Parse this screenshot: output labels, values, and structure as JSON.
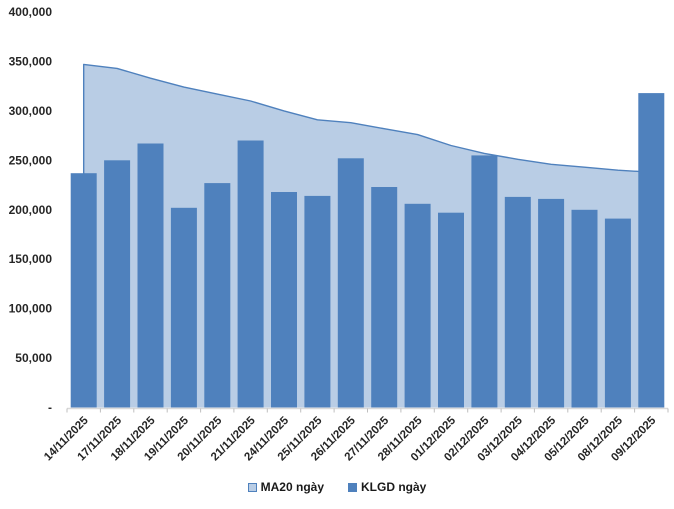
{
  "chart_data": {
    "type": "bar",
    "subtype": "bar-with-area-overlay",
    "title": "",
    "xlabel": "",
    "ylabel": "",
    "ylim": [
      0,
      400000
    ],
    "ytick_step": 50000,
    "grid": false,
    "legend_position": "bottom-center",
    "categories": [
      "14/11/2025",
      "17/11/2025",
      "18/11/2025",
      "19/11/2025",
      "20/11/2025",
      "21/11/2025",
      "24/11/2025",
      "25/11/2025",
      "26/11/2025",
      "27/11/2025",
      "28/11/2025",
      "01/12/2025",
      "02/12/2025",
      "03/12/2025",
      "04/12/2025",
      "05/12/2025",
      "08/12/2025",
      "09/12/2025"
    ],
    "series": [
      {
        "name": "MA20 ngày",
        "type": "area",
        "fill": "#b9cde5",
        "line": "#4f81bd",
        "values": [
          347000,
          343000,
          333000,
          324000,
          317000,
          310000,
          300000,
          291000,
          288000,
          282000,
          276000,
          265000,
          257000,
          251000,
          246000,
          243000,
          240000,
          238000
        ]
      },
      {
        "name": "KLGD ngày",
        "type": "bar",
        "fill": "#4f81bd",
        "values": [
          237000,
          250000,
          267000,
          202000,
          227000,
          270000,
          218000,
          214000,
          252000,
          223000,
          206000,
          197000,
          255000,
          213000,
          211000,
          200000,
          191000,
          318000
        ]
      }
    ],
    "yticks": [
      {
        "value": 0,
        "label": "-"
      },
      {
        "value": 50000,
        "label": "50,000"
      },
      {
        "value": 100000,
        "label": "100,000"
      },
      {
        "value": 150000,
        "label": "150,000"
      },
      {
        "value": 200000,
        "label": "200,000"
      },
      {
        "value": 250000,
        "label": "250,000"
      },
      {
        "value": 300000,
        "label": "300,000"
      },
      {
        "value": 350000,
        "label": "350,000"
      },
      {
        "value": 400000,
        "label": "400,000"
      }
    ],
    "axis_color": "#d9d9d9",
    "tick_color": "#bfbfbf",
    "text_color": "#262626"
  },
  "legend": {
    "items": [
      {
        "label": "MA20 ngày",
        "swatch_fill": "#b9cde5",
        "swatch_border": "#4f81bd"
      },
      {
        "label": "KLGD ngày",
        "swatch_fill": "#4f81bd",
        "swatch_border": "#4f81bd"
      }
    ]
  }
}
